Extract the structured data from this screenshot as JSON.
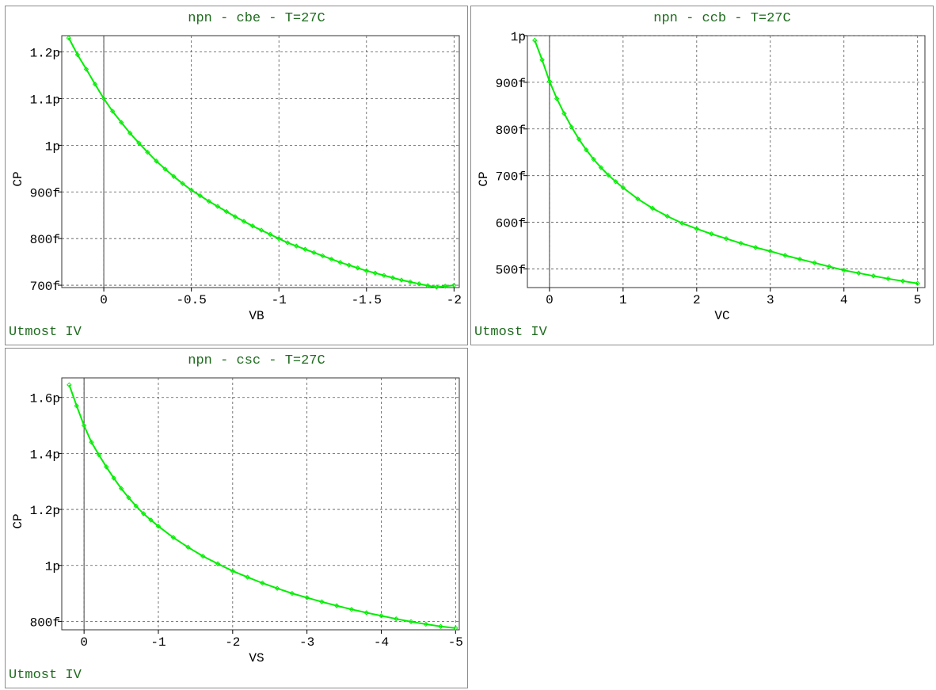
{
  "charts": [
    {
      "title": "npn - cbe - T=27C",
      "footer": "Utmost IV",
      "chart_data": {
        "type": "line",
        "title": "npn - cbe - T=27C",
        "xlabel": "VB",
        "ylabel": "CP",
        "xlim": [
          0.24,
          -2.03
        ],
        "ylim": [
          6.95e-13,
          1.235e-12
        ],
        "xticks": [
          0,
          -0.5,
          -1,
          -1.5,
          -2
        ],
        "xtick_labels": [
          "0",
          "-0.5",
          "-1",
          "-1.5",
          "-2"
        ],
        "yticks": [
          7e-13,
          8e-13,
          9e-13,
          1e-12,
          1.1e-12,
          1.2e-12
        ],
        "ytick_labels": [
          "700f",
          "800f",
          "900f",
          "1p",
          "1.1p",
          "1.2p"
        ],
        "grid": true,
        "series": [
          {
            "color": "#00ee00",
            "x": [
              0.2,
              0.15,
              0.1,
              0.05,
              0,
              -0.05,
              -0.1,
              -0.15,
              -0.2,
              -0.25,
              -0.3,
              -0.35,
              -0.4,
              -0.45,
              -0.5,
              -0.55,
              -0.6,
              -0.65,
              -0.7,
              -0.75,
              -0.8,
              -0.85,
              -0.9,
              -0.95,
              -1,
              -1.05,
              -1.1,
              -1.15,
              -1.2,
              -1.25,
              -1.3,
              -1.35,
              -1.4,
              -1.45,
              -1.5,
              -1.55,
              -1.6,
              -1.65,
              -1.7,
              -1.75,
              -1.8,
              -1.85,
              -1.9,
              -1.95,
              -2
            ],
            "y": [
              1.23e-12,
              1.194e-12,
              1.163e-12,
              1.131e-12,
              1.1e-12,
              1.073e-12,
              1.049e-12,
              1.026e-12,
              1.005e-12,
              9.85e-13,
              9.66e-13,
              9.49e-13,
              9.33e-13,
              9.18e-13,
              9.04e-13,
              8.92e-13,
              8.8e-13,
              8.69e-13,
              8.58e-13,
              8.47e-13,
              8.37e-13,
              8.27e-13,
              8.18e-13,
              8.09e-13,
              8e-13,
              7.91e-13,
              7.84e-13,
              7.77e-13,
              7.7e-13,
              7.63e-13,
              7.56e-13,
              7.49e-13,
              7.43e-13,
              7.37e-13,
              7.31e-13,
              7.26e-13,
              7.21e-13,
              7.16e-13,
              7.11e-13,
              7.07e-13,
              7.03e-13,
              6.99e-13,
              6.96e-13,
              6.98e-13,
              7e-13
            ]
          }
        ]
      }
    },
    {
      "title": "npn - ccb - T=27C",
      "footer": "Utmost IV",
      "chart_data": {
        "type": "line",
        "title": "npn - ccb - T=27C",
        "xlabel": "VC",
        "ylabel": "CP",
        "xlim": [
          -0.3,
          5.1
        ],
        "ylim": [
          4.6e-13,
          1e-12
        ],
        "xticks": [
          0,
          1,
          2,
          3,
          4,
          5
        ],
        "xtick_labels": [
          "0",
          "1",
          "2",
          "3",
          "4",
          "5"
        ],
        "yticks": [
          5e-13,
          6e-13,
          7e-13,
          8e-13,
          9e-13,
          1e-12
        ],
        "ytick_labels": [
          "500f",
          "600f",
          "700f",
          "800f",
          "900f",
          "1p"
        ],
        "grid": true,
        "series": [
          {
            "color": "#00ee00",
            "x": [
              -0.2,
              -0.1,
              0,
              0.1,
              0.2,
              0.3,
              0.4,
              0.5,
              0.6,
              0.7,
              0.8,
              0.9,
              1.0,
              1.2,
              1.4,
              1.6,
              1.8,
              2.0,
              2.2,
              2.4,
              2.6,
              2.8,
              3.0,
              3.2,
              3.4,
              3.6,
              3.8,
              4.0,
              4.2,
              4.4,
              4.6,
              4.8,
              5.0
            ],
            "y": [
              9.9e-13,
              9.48e-13,
              9.02e-13,
              8.65e-13,
              8.33e-13,
              8.04e-13,
              7.78e-13,
              7.55e-13,
              7.35e-13,
              7.17e-13,
              7.01e-13,
              6.87e-13,
              6.74e-13,
              6.5e-13,
              6.3e-13,
              6.13e-13,
              5.98e-13,
              5.86e-13,
              5.75e-13,
              5.65e-13,
              5.55e-13,
              5.46e-13,
              5.38e-13,
              5.29e-13,
              5.21e-13,
              5.13e-13,
              5.05e-13,
              4.97e-13,
              4.91e-13,
              4.85e-13,
              4.79e-13,
              4.74e-13,
              4.69e-13
            ]
          }
        ]
      }
    },
    {
      "title": "npn - csc - T=27C",
      "footer": "Utmost IV",
      "chart_data": {
        "type": "line",
        "title": "npn - csc - T=27C",
        "xlabel": "VS",
        "ylabel": "CP",
        "xlim": [
          0.3,
          -5.05
        ],
        "ylim": [
          7.7e-13,
          1.67e-12
        ],
        "xticks": [
          0,
          -1,
          -2,
          -3,
          -4,
          -5
        ],
        "xtick_labels": [
          "0",
          "-1",
          "-2",
          "-3",
          "-4",
          "-5"
        ],
        "yticks": [
          8e-13,
          1e-12,
          1.2e-12,
          1.4e-12,
          1.6e-12
        ],
        "ytick_labels": [
          "800f",
          "1p",
          "1.2p",
          "1.4p",
          "1.6p"
        ],
        "grid": true,
        "series": [
          {
            "color": "#00ee00",
            "x": [
              0.2,
              0.1,
              0,
              -0.1,
              -0.2,
              -0.3,
              -0.4,
              -0.5,
              -0.6,
              -0.7,
              -0.8,
              -0.9,
              -1.0,
              -1.2,
              -1.4,
              -1.6,
              -1.8,
              -2.0,
              -2.2,
              -2.4,
              -2.6,
              -2.8,
              -3.0,
              -3.2,
              -3.4,
              -3.6,
              -3.8,
              -4.0,
              -4.2,
              -4.4,
              -4.6,
              -4.8,
              -5.0
            ],
            "y": [
              1.645e-12,
              1.57e-12,
              1.5e-12,
              1.44e-12,
              1.395e-12,
              1.352e-12,
              1.312e-12,
              1.275e-12,
              1.242e-12,
              1.212e-12,
              1.185e-12,
              1.162e-12,
              1.14e-12,
              1.1e-12,
              1.065e-12,
              1.033e-12,
              1.006e-12,
              9.8e-13,
              9.58e-13,
              9.37e-13,
              9.18e-13,
              9e-13,
              8.85e-13,
              8.7e-13,
              8.56e-13,
              8.43e-13,
              8.31e-13,
              8.2e-13,
              8.09e-13,
              7.99e-13,
              7.9e-13,
              7.82e-13,
              7.76e-13
            ]
          }
        ]
      }
    }
  ]
}
